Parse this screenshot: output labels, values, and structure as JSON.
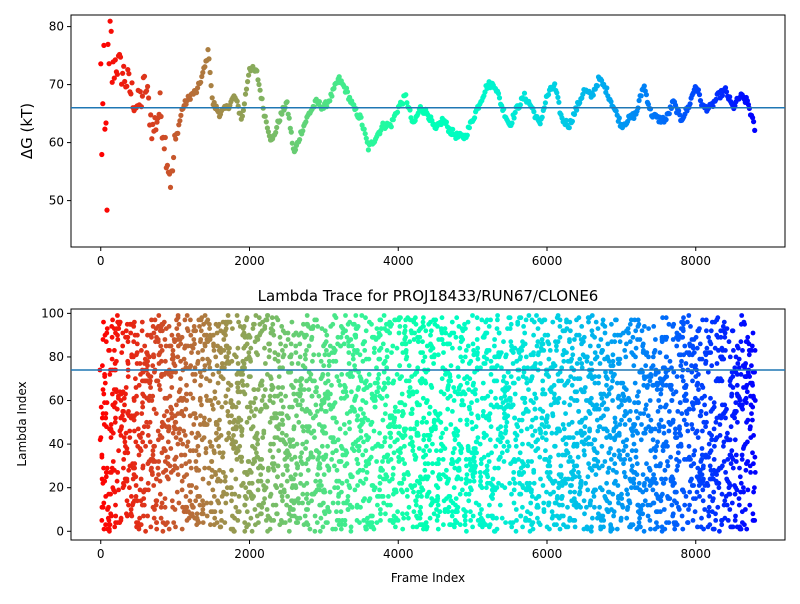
{
  "chart_data": [
    {
      "type": "scatter",
      "title": "",
      "xlabel": "",
      "ylabel": "ΔG (kT)",
      "xlim": [
        -400,
        9200
      ],
      "ylim": [
        42,
        82
      ],
      "xticks": [
        0,
        2000,
        4000,
        6000,
        8000
      ],
      "xtick_labels": [
        "0",
        "2000",
        "4000",
        "6000",
        "8000"
      ],
      "yticks": [
        50,
        60,
        70,
        80
      ],
      "ytick_labels": [
        "50",
        "60",
        "70",
        "80"
      ],
      "hline": 66.0,
      "hline_color": "#1f77b4",
      "colormap": "rainbow",
      "color_by": "frame index (red at start → purple at end)",
      "grid": false,
      "series": [
        {
          "x": [
            0,
            60,
            130,
            200,
            300,
            400,
            500,
            600,
            700,
            800,
            900,
            950,
            1000,
            1100,
            1200,
            1300,
            1400,
            1450,
            1500,
            1600,
            1700,
            1800,
            1900,
            2000,
            2100,
            2200,
            2300,
            2400,
            2500,
            2600,
            2700,
            2800,
            2900,
            3000,
            3100,
            3200,
            3300,
            3400,
            3500,
            3600,
            3700,
            3800,
            3900,
            4000,
            4100,
            4200,
            4300,
            4400,
            4500,
            4600,
            4700,
            4800,
            4900,
            5000,
            5100,
            5200,
            5300,
            5400,
            5500,
            5600,
            5700,
            5800,
            5900,
            6000,
            6100,
            6200,
            6300,
            6400,
            6500,
            6600,
            6700,
            6800,
            6900,
            7000,
            7100,
            7200,
            7300,
            7400,
            7500,
            7600,
            7700,
            7800,
            7900,
            8000,
            8100,
            8200,
            8300,
            8400,
            8500,
            8600,
            8700,
            8800
          ],
          "y": [
            68,
            55,
            70,
            74,
            72,
            69,
            66,
            70,
            62,
            66,
            57,
            53,
            60,
            66,
            68,
            69,
            73,
            76,
            67,
            65,
            66,
            68,
            64,
            73,
            72,
            65,
            60,
            64,
            67,
            58,
            62,
            65,
            67,
            66,
            68,
            71,
            69,
            66,
            64,
            59,
            61,
            63,
            63,
            66,
            68,
            63,
            66,
            65,
            62,
            64,
            62,
            61,
            61,
            64,
            67,
            70,
            70,
            66,
            63,
            66,
            68,
            66,
            63,
            68,
            70,
            64,
            63,
            66,
            69,
            68,
            71,
            69,
            66,
            63,
            64,
            65,
            70,
            65,
            64,
            64,
            67,
            64,
            66,
            70,
            66,
            66,
            68,
            69,
            66,
            68,
            67,
            62
          ]
        }
      ]
    },
    {
      "type": "scatter",
      "title": "Lambda Trace for PROJ18433/RUN67/CLONE6",
      "xlabel": "Frame Index",
      "ylabel": "Lambda Index",
      "xlim": [
        -400,
        9200
      ],
      "ylim": [
        -4,
        102
      ],
      "xticks": [
        0,
        2000,
        4000,
        6000,
        8000
      ],
      "xtick_labels": [
        "0",
        "2000",
        "4000",
        "6000",
        "8000"
      ],
      "yticks": [
        0,
        20,
        40,
        60,
        80,
        100
      ],
      "ytick_labels": [
        "0",
        "20",
        "40",
        "60",
        "80",
        "100"
      ],
      "hline": 74,
      "hline_color": "#1f77b4",
      "colormap": "rainbow",
      "color_by": "frame index (red at start → purple at end)",
      "x_range": [
        0,
        8800
      ],
      "y_range": [
        0,
        99
      ],
      "grid": false
    }
  ]
}
